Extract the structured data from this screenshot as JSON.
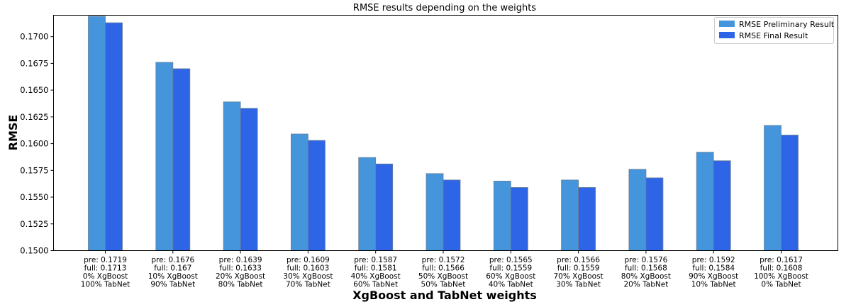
{
  "chart_data": {
    "type": "bar",
    "title": "RMSE results depending on the weights",
    "xlabel": "XgBoost and TabNet weights",
    "ylabel": "RMSE",
    "ylim": [
      0.15,
      0.172
    ],
    "yticks": [
      "0.1500",
      "0.1525",
      "0.1550",
      "0.1575",
      "0.1600",
      "0.1625",
      "0.1650",
      "0.1675",
      "0.1700"
    ],
    "categories": [
      [
        "pre: 0.1719",
        "full: 0.1713",
        "0% XgBoost",
        "100% TabNet"
      ],
      [
        "pre: 0.1676",
        "full: 0.167",
        "10% XgBoost",
        "90% TabNet"
      ],
      [
        "pre: 0.1639",
        "full: 0.1633",
        "20% XgBoost",
        "80% TabNet"
      ],
      [
        "pre: 0.1609",
        "full: 0.1603",
        "30% XgBoost",
        "70% TabNet"
      ],
      [
        "pre: 0.1587",
        "full: 0.1581",
        "40% XgBoost",
        "60% TabNet"
      ],
      [
        "pre: 0.1572",
        "full: 0.1566",
        "50% XgBoost",
        "50% TabNet"
      ],
      [
        "pre: 0.1565",
        "full: 0.1559",
        "60% XgBoost",
        "40% TabNet"
      ],
      [
        "pre: 0.1566",
        "full: 0.1559",
        "70% XgBoost",
        "30% TabNet"
      ],
      [
        "pre: 0.1576",
        "full: 0.1568",
        "80% XgBoost",
        "20% TabNet"
      ],
      [
        "pre: 0.1592",
        "full: 0.1584",
        "90% XgBoost",
        "10% TabNet"
      ],
      [
        "pre: 0.1617",
        "full: 0.1608",
        "100% XgBoost",
        "0% TabNet"
      ]
    ],
    "series": [
      {
        "name": "RMSE Preliminary Result",
        "color": "#4495db",
        "values": [
          0.1719,
          0.1676,
          0.1639,
          0.1609,
          0.1587,
          0.1572,
          0.1565,
          0.1566,
          0.1576,
          0.1592,
          0.1617
        ]
      },
      {
        "name": "RMSE Final Result",
        "color": "#2e65e6",
        "values": [
          0.1713,
          0.167,
          0.1633,
          0.1603,
          0.1581,
          0.1566,
          0.1559,
          0.1559,
          0.1568,
          0.1584,
          0.1608
        ]
      }
    ],
    "grid": false,
    "legend_position": "top-right"
  }
}
